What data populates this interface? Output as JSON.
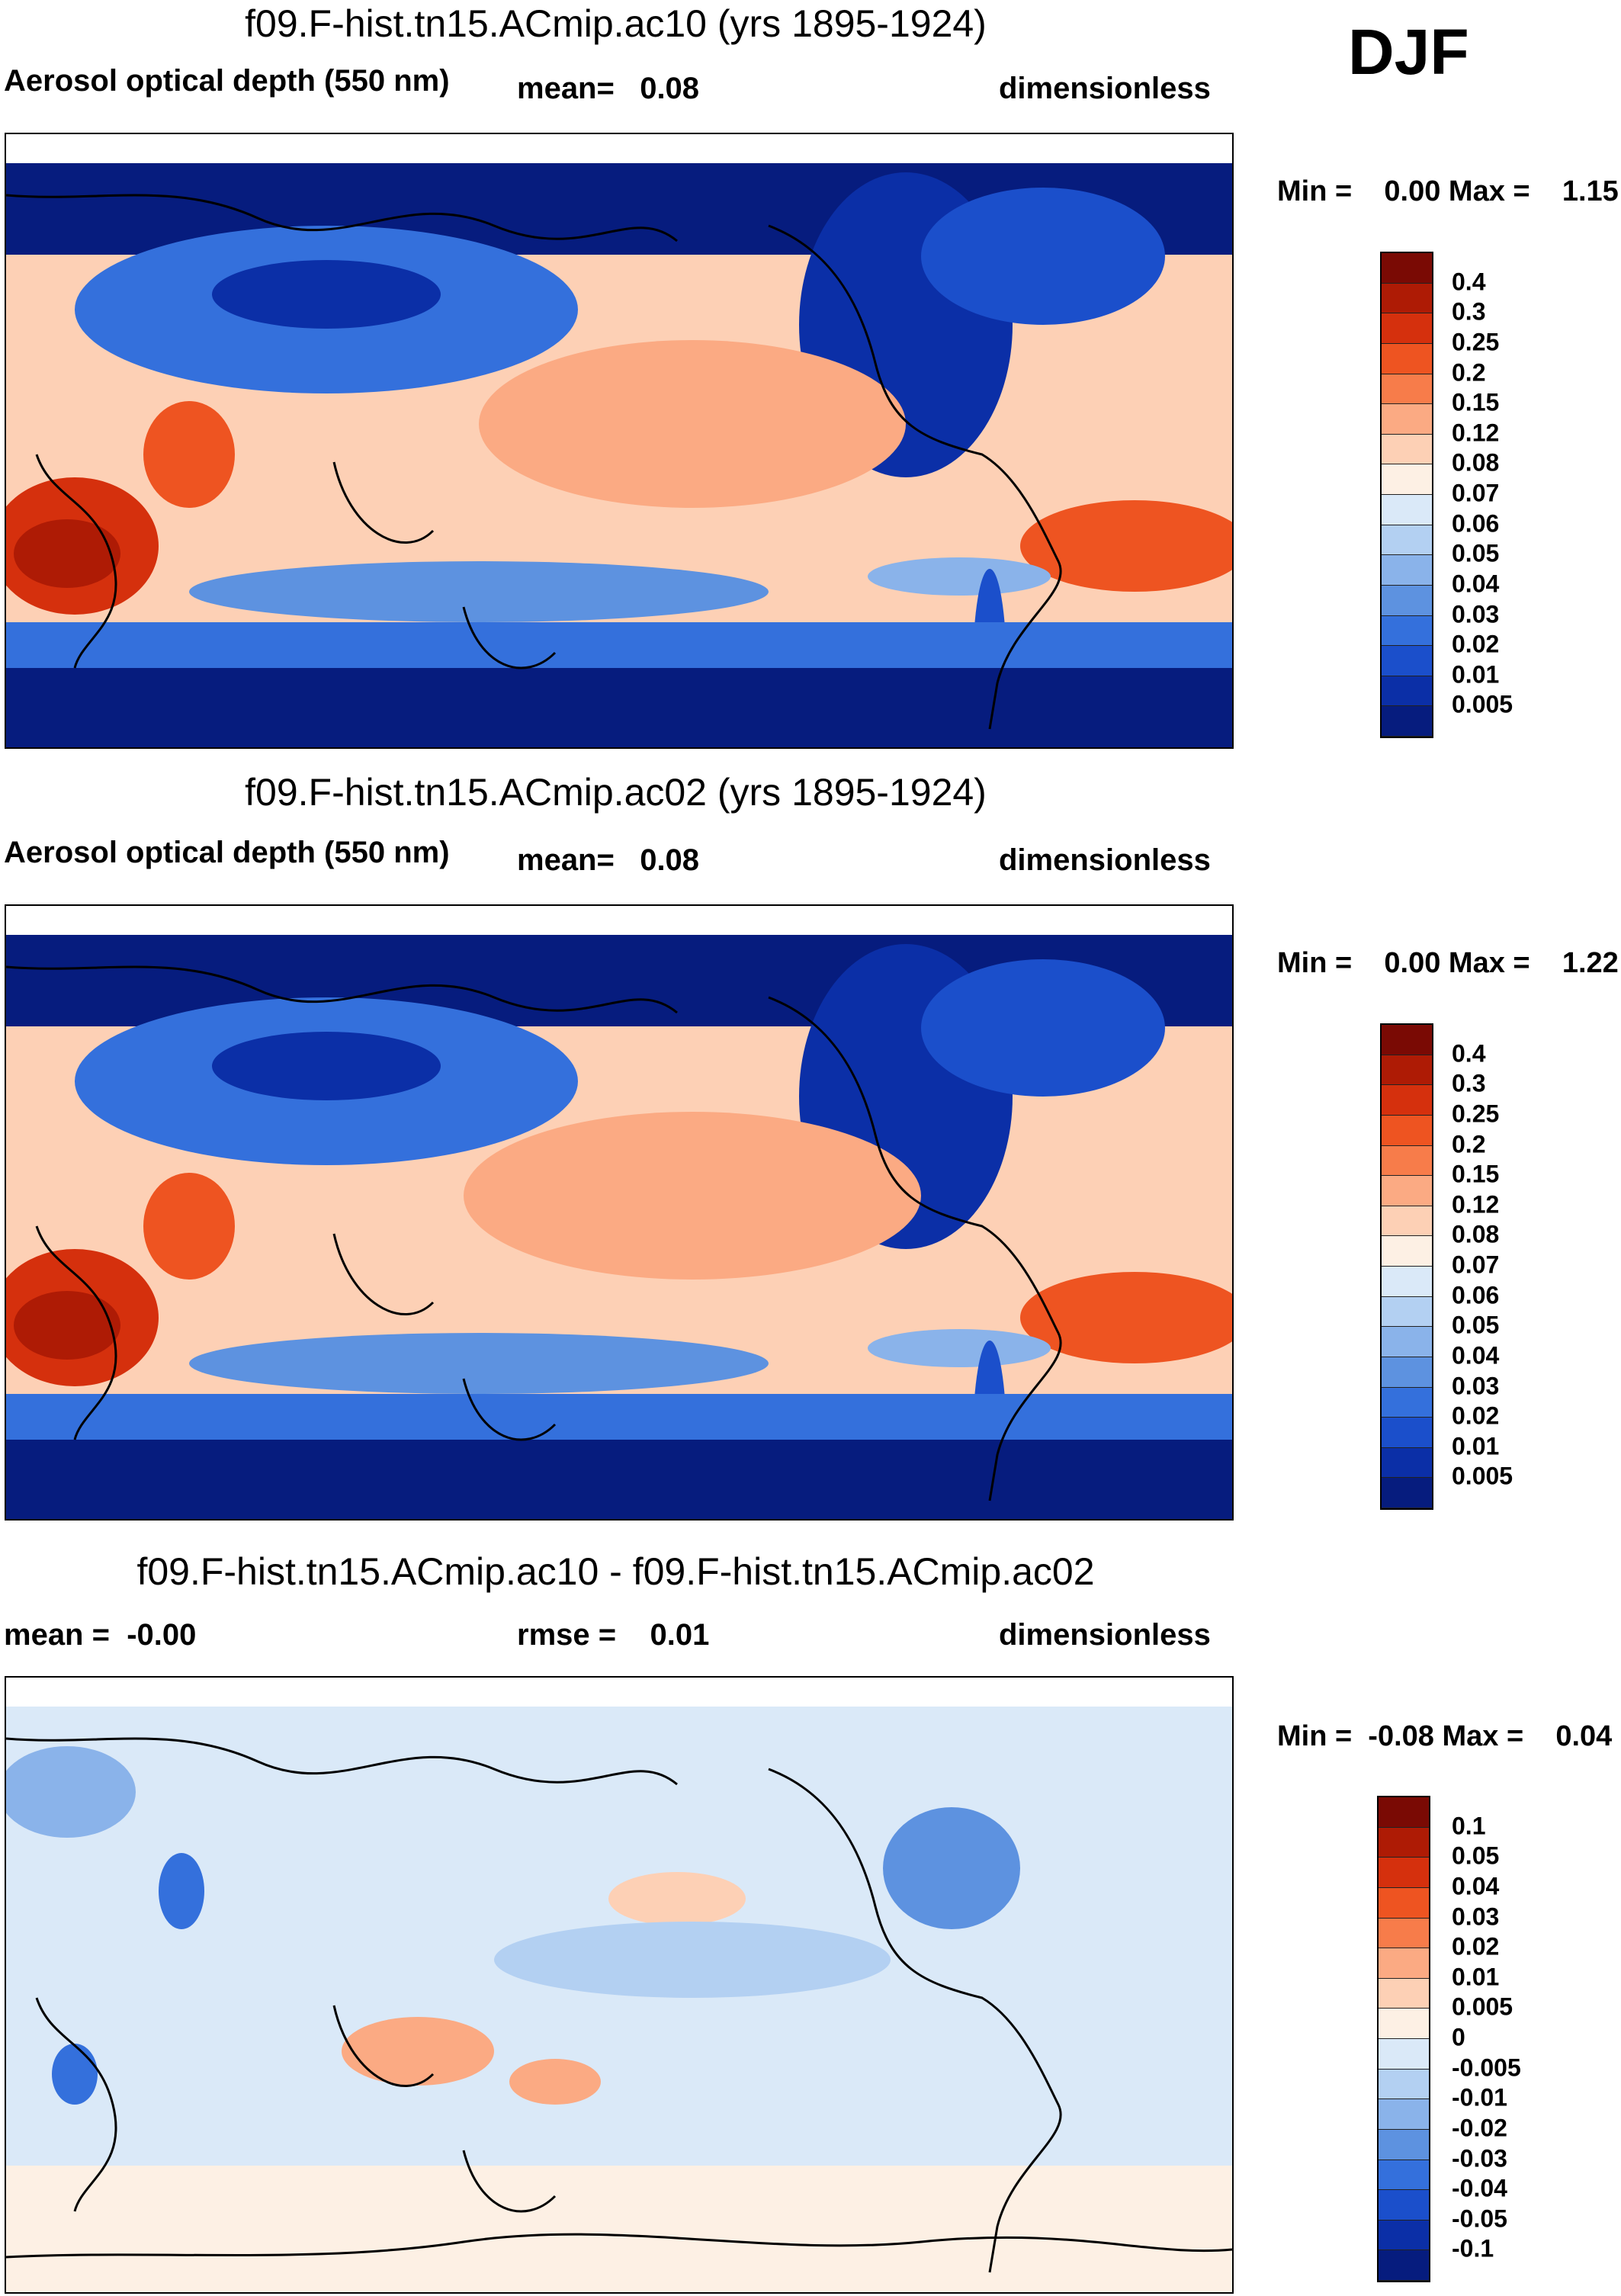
{
  "season": "DJF",
  "panels": [
    {
      "id": "ac10",
      "title": "f09.F-hist.tn15.ACmip.ac10 (yrs 1895-1924)",
      "left_label": "Aerosol optical depth (550 nm)",
      "center_label": "mean=   0.08",
      "right_label": "dimensionless",
      "min_max": "Min =    0.00 Max =    1.15",
      "kind": "abs"
    },
    {
      "id": "ac02",
      "title": "f09.F-hist.tn15.ACmip.ac02 (yrs 1895-1924)",
      "left_label": "Aerosol optical depth (550 nm)",
      "center_label": "mean=   0.08",
      "right_label": "dimensionless",
      "min_max": "Min =    0.00 Max =    1.22",
      "kind": "abs"
    },
    {
      "id": "diff",
      "title": "f09.F-hist.tn15.ACmip.ac10 - f09.F-hist.tn15.ACmip.ac02",
      "left_label": "mean =  -0.00",
      "center_label": "rmse =    0.01",
      "right_label": "dimensionless",
      "min_max": "Min =  -0.08 Max =    0.04",
      "kind": "diff"
    }
  ],
  "chart_data": [
    {
      "type": "heatmap",
      "title": "f09.F-hist.tn15.ACmip.ac10 (yrs 1895-1924)",
      "variable": "Aerosol optical depth (550 nm)",
      "units": "dimensionless",
      "mean": 0.08,
      "min": 0.0,
      "max": 1.15,
      "colorbar_levels": [
        "0.4",
        "0.3",
        "0.25",
        "0.2",
        "0.15",
        "0.12",
        "0.08",
        "0.07",
        "0.06",
        "0.05",
        "0.04",
        "0.03",
        "0.02",
        "0.01",
        "0.005"
      ],
      "colorbar_colors": [
        "#7a0a04",
        "#ae1b05",
        "#d5300d",
        "#ee5421",
        "#f77c4a",
        "#fbaa83",
        "#fdd0b5",
        "#fdf0e4",
        "#dae9f8",
        "#b3d0f2",
        "#8ab3ea",
        "#5d92e0",
        "#3470dc",
        "#1b4fcb",
        "#0b2fa7",
        "#061c7e"
      ]
    },
    {
      "type": "heatmap",
      "title": "f09.F-hist.tn15.ACmip.ac02 (yrs 1895-1924)",
      "variable": "Aerosol optical depth (550 nm)",
      "units": "dimensionless",
      "mean": 0.08,
      "min": 0.0,
      "max": 1.22,
      "colorbar_levels": [
        "0.4",
        "0.3",
        "0.25",
        "0.2",
        "0.15",
        "0.12",
        "0.08",
        "0.07",
        "0.06",
        "0.05",
        "0.04",
        "0.03",
        "0.02",
        "0.01",
        "0.005"
      ],
      "colorbar_colors": [
        "#7a0a04",
        "#ae1b05",
        "#d5300d",
        "#ee5421",
        "#f77c4a",
        "#fbaa83",
        "#fdd0b5",
        "#fdf0e4",
        "#dae9f8",
        "#b3d0f2",
        "#8ab3ea",
        "#5d92e0",
        "#3470dc",
        "#1b4fcb",
        "#0b2fa7",
        "#061c7e"
      ]
    },
    {
      "type": "heatmap",
      "title": "f09.F-hist.tn15.ACmip.ac10 - f09.F-hist.tn15.ACmip.ac02",
      "units": "dimensionless",
      "mean": -0.0,
      "rmse": 0.01,
      "min": -0.08,
      "max": 0.04,
      "colorbar_levels": [
        "0.1",
        "0.05",
        "0.04",
        "0.03",
        "0.02",
        "0.01",
        "0.005",
        "0",
        "-0.005",
        "-0.01",
        "-0.02",
        "-0.03",
        "-0.04",
        "-0.05",
        "-0.1"
      ],
      "colorbar_colors": [
        "#7a0a04",
        "#ae1b05",
        "#d5300d",
        "#ee5421",
        "#f77c4a",
        "#fbaa83",
        "#fdd0b5",
        "#fdf0e4",
        "#dae9f8",
        "#b3d0f2",
        "#8ab3ea",
        "#5d92e0",
        "#3470dc",
        "#1b4fcb",
        "#0b2fa7",
        "#061c7e"
      ]
    }
  ]
}
